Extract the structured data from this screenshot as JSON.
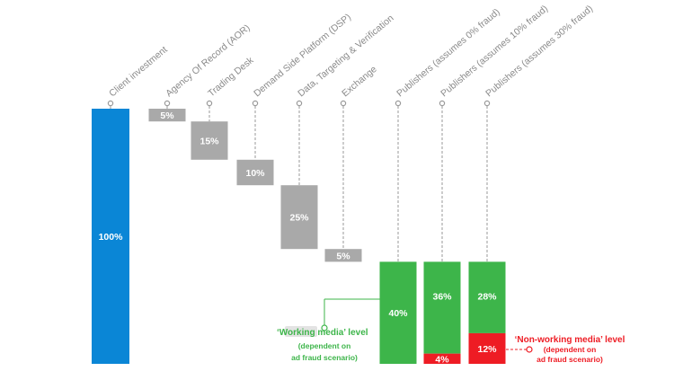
{
  "chart_data": {
    "type": "bar",
    "subtype": "waterfall",
    "categories": [
      "Client investment",
      "Agency Of Record (AOR)",
      "Trading Desk",
      "Demand Side Platform (DSP)",
      "Data, Targeting & Verification",
      "Exchange",
      "Publishers (assumes 0% fraud)",
      "Publishers (assumes 10% fraud)",
      "Publishers (assumes 30% fraud)"
    ],
    "steps": [
      {
        "category": "Client investment",
        "kind": "total",
        "value": 100,
        "label": "100%"
      },
      {
        "category": "Agency Of Record (AOR)",
        "kind": "deduction",
        "value": 5,
        "label": "5%"
      },
      {
        "category": "Trading Desk",
        "kind": "deduction",
        "value": 15,
        "label": "15%"
      },
      {
        "category": "Demand Side Platform (DSP)",
        "kind": "deduction",
        "value": 10,
        "label": "10%"
      },
      {
        "category": "Data, Targeting & Verification",
        "kind": "deduction",
        "value": 25,
        "label": "25%"
      },
      {
        "category": "Exchange",
        "kind": "deduction",
        "value": 5,
        "label": "5%"
      }
    ],
    "publishers": [
      {
        "category": "Publishers (assumes 0% fraud)",
        "working": 40,
        "working_label": "40%",
        "non_working": 0,
        "non_working_label": ""
      },
      {
        "category": "Publishers (assumes 10% fraud)",
        "working": 36,
        "working_label": "36%",
        "non_working": 4,
        "non_working_label": "4%"
      },
      {
        "category": "Publishers (assumes 30% fraud)",
        "working": 28,
        "working_label": "28%",
        "non_working": 12,
        "non_working_label": "12%"
      }
    ],
    "annotations": {
      "working": {
        "quote_open": "‘",
        "highlight": "Working",
        "rest": " media’ level",
        "sub1": "(dependent on",
        "sub2": "ad fraud scenario)"
      },
      "non_working": {
        "head": "‘Non-working media’ level",
        "sub1": "(dependent on",
        "sub2": "ad fraud scenario)"
      }
    },
    "colors": {
      "total": "#0a86d6",
      "deduction": "#a9a9a9",
      "working": "#3db54a",
      "non_working": "#ee1c24",
      "leader": "#9a9a9a",
      "label": "#8a8a8a"
    },
    "ylim": [
      0,
      100
    ]
  }
}
